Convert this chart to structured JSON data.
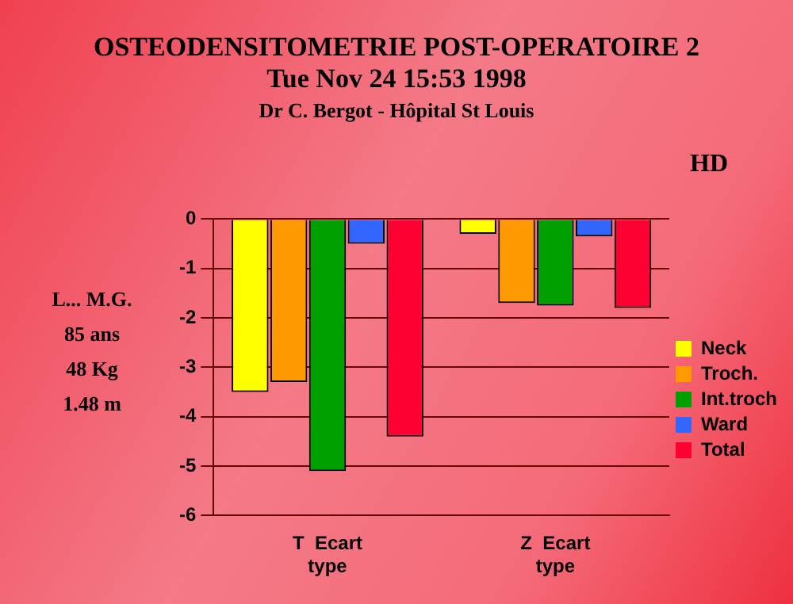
{
  "chart_data": {
    "type": "bar",
    "title": "OSTEODENSITOMETRIE POST-OPERATOIRE 2",
    "subtitle": "Tue Nov 24  15:53  1998",
    "annotations": [
      "Dr C. Bergot - Hôpital St Louis",
      "HD",
      "L... M.G.",
      "85 ans",
      "48 Kg",
      "1.48 m"
    ],
    "categories": [
      "T  Ecart type",
      "Z  Ecart type"
    ],
    "series": [
      {
        "name": "Neck",
        "color": "#ffff00",
        "values": [
          -3.5,
          -0.3
        ]
      },
      {
        "name": "Troch.",
        "color": "#ff9900",
        "values": [
          -3.3,
          -1.7
        ]
      },
      {
        "name": "Int.troch",
        "color": "#00a000",
        "values": [
          -5.1,
          -1.75
        ]
      },
      {
        "name": "Ward",
        "color": "#3366ff",
        "values": [
          -0.5,
          -0.35
        ]
      },
      {
        "name": "Total",
        "color": "#ff0033",
        "values": [
          -4.4,
          -1.8
        ]
      }
    ],
    "ylim": [
      -6,
      0
    ],
    "yticks": [
      -6,
      -5,
      -4,
      -3,
      -2,
      -1,
      0
    ],
    "grid": "y",
    "legend": "right"
  }
}
